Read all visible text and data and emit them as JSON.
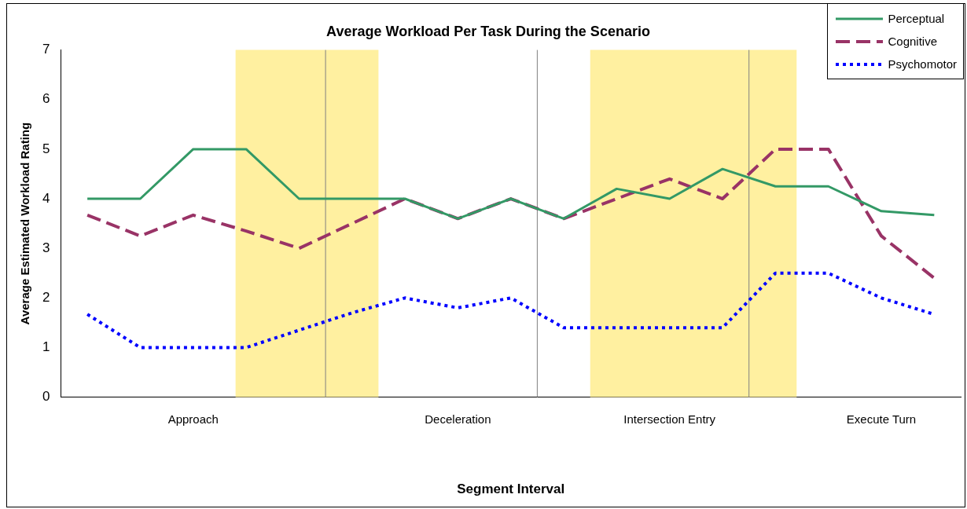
{
  "chart_data": {
    "type": "line",
    "title": "Average Workload Per Task During the Scenario",
    "xlabel": "Segment Interval",
    "ylabel": "Average Estimated Workload Rating",
    "categories": [
      null,
      null,
      "Approach",
      null,
      null,
      null,
      null,
      "Deceleration",
      null,
      null,
      null,
      "Intersection Entry",
      null,
      null,
      null,
      "Execute Turn",
      null
    ],
    "series": [
      {
        "name": "Perceptual",
        "color": "#339966",
        "line_style": "solid",
        "values": [
          4,
          4,
          5,
          5,
          4,
          4,
          4,
          3.6,
          4,
          3.6,
          4.2,
          4,
          4.6,
          4.25,
          4.25,
          3.75,
          3.67
        ]
      },
      {
        "name": "Cognitive",
        "color": "#993366",
        "line_style": "dashed",
        "values": [
          3.67,
          3.25,
          3.67,
          3.35,
          3,
          3.5,
          4,
          3.6,
          4,
          3.6,
          4,
          4.4,
          4,
          5,
          5,
          3.25,
          2.4
        ]
      },
      {
        "name": "Psychomotor",
        "color": "#0000ff",
        "line_style": "dotted",
        "values": [
          1.67,
          1,
          1,
          1,
          1.35,
          1.7,
          2,
          1.8,
          2,
          1.4,
          1.4,
          1.4,
          1.4,
          2.5,
          2.5,
          2,
          1.67
        ]
      }
    ],
    "ylim": [
      0,
      7
    ],
    "yticks": [
      0,
      1,
      2,
      3,
      4,
      5,
      6,
      7
    ],
    "grid": false,
    "legend": "top right",
    "marker": "none"
  }
}
